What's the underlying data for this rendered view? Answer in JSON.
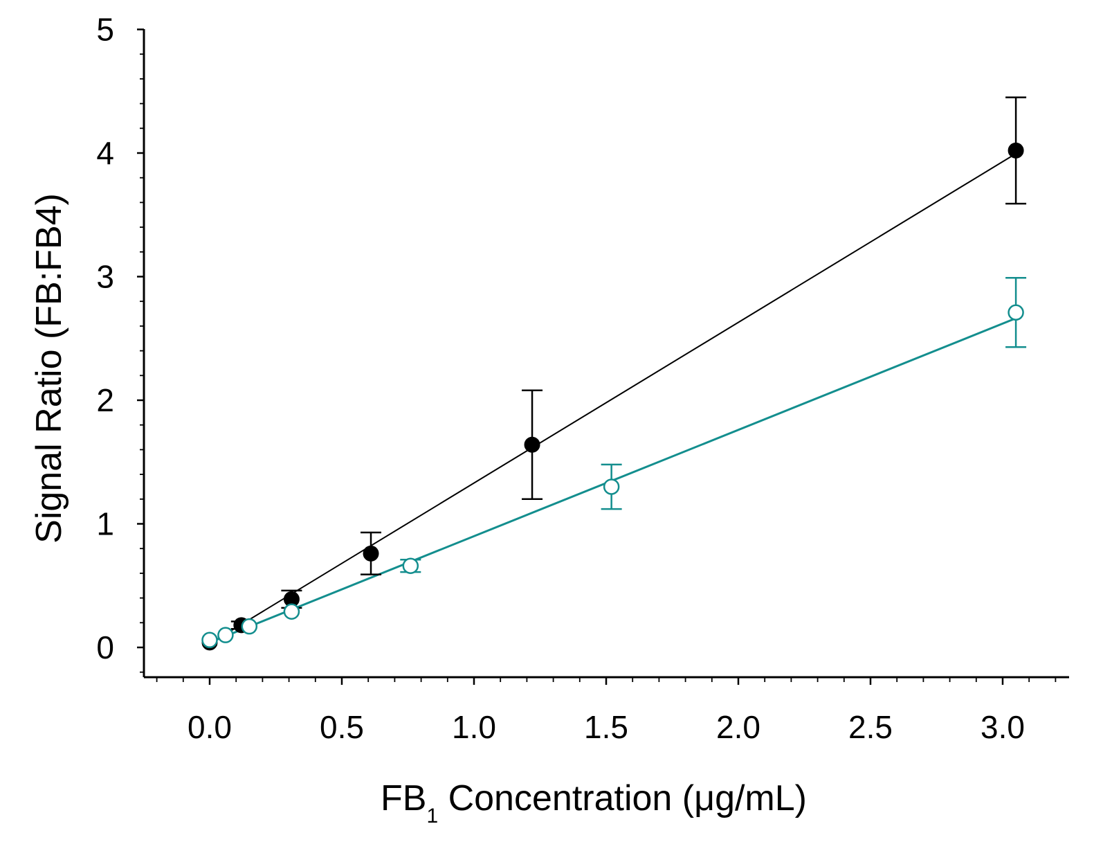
{
  "chart_data": {
    "type": "scatter",
    "xlabel_main": "FB",
    "xlabel_sub": "1",
    "xlabel_rest": " Concentration (μg/mL)",
    "ylabel": "Signal Ratio (FB:FB4)",
    "xlim": [
      -0.25,
      3.2
    ],
    "ylim": [
      -0.25,
      5
    ],
    "x_ticks": [
      0.0,
      0.5,
      1.0,
      1.5,
      2.0,
      2.5,
      3.0
    ],
    "x_tick_labels": [
      "0.0",
      "0.5",
      "1.0",
      "1.5",
      "2.0",
      "2.5",
      "3.0"
    ],
    "y_ticks": [
      0,
      1,
      2,
      3,
      4,
      5
    ],
    "y_tick_labels": [
      "0",
      "1",
      "2",
      "3",
      "4",
      "5"
    ],
    "x_minor_step": 0.1,
    "y_minor_step": 0.2,
    "series": [
      {
        "name": "filled",
        "marker": "filled-circle",
        "color": "#000000",
        "fit": {
          "slope": 1.3,
          "intercept": 0.03,
          "x_range": [
            0.0,
            3.05
          ]
        },
        "points": [
          {
            "x": 0.0,
            "y": 0.04,
            "err": 0.0
          },
          {
            "x": 0.12,
            "y": 0.18,
            "err": 0.03
          },
          {
            "x": 0.31,
            "y": 0.39,
            "err": 0.07
          },
          {
            "x": 0.61,
            "y": 0.76,
            "err": 0.17
          },
          {
            "x": 1.22,
            "y": 1.64,
            "err": 0.44
          },
          {
            "x": 3.05,
            "y": 4.02,
            "err": 0.43
          }
        ]
      },
      {
        "name": "open",
        "marker": "open-circle",
        "color": "#138e8e",
        "fit": {
          "slope": 0.86,
          "intercept": 0.04,
          "x_range": [
            0.0,
            3.05
          ]
        },
        "points": [
          {
            "x": 0.0,
            "y": 0.06,
            "err": 0.0
          },
          {
            "x": 0.06,
            "y": 0.1,
            "err": 0.0
          },
          {
            "x": 0.15,
            "y": 0.17,
            "err": 0.0
          },
          {
            "x": 0.31,
            "y": 0.29,
            "err": 0.0
          },
          {
            "x": 0.76,
            "y": 0.66,
            "err": 0.05
          },
          {
            "x": 1.52,
            "y": 1.3,
            "err": 0.18
          },
          {
            "x": 3.05,
            "y": 2.71,
            "err": 0.28
          }
        ]
      }
    ]
  }
}
